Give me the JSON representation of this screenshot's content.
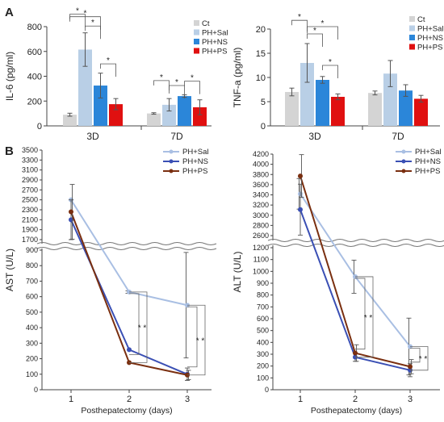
{
  "panels": {
    "a": "A",
    "b": "B"
  },
  "colors": {
    "ct": "#d4d4d4",
    "sal": "#b9cfe6",
    "ns": "#2b86d9",
    "ps": "#e01010",
    "axis": "#444444",
    "line_sal": "#a9bfe3",
    "line_ns": "#3a4fb4",
    "line_ps": "#7a2f10"
  },
  "chart_data": [
    {
      "type": "bar",
      "ylabel": "IL-6 (pg/ml)",
      "categories": [
        "3D",
        "7D"
      ],
      "ylim": [
        0,
        800
      ],
      "yticks": [
        "0",
        "200",
        "400",
        "600",
        "800"
      ],
      "series": [
        {
          "name": "Ct",
          "values": [
            90,
            100
          ],
          "errors": [
            12,
            6
          ]
        },
        {
          "name": "PH+Sal",
          "values": [
            615,
            170
          ],
          "errors": [
            135,
            50
          ]
        },
        {
          "name": "PH+NS",
          "values": [
            325,
            240
          ],
          "errors": [
            100,
            10
          ]
        },
        {
          "name": "PH+PS",
          "values": [
            175,
            150
          ],
          "errors": [
            45,
            60
          ]
        }
      ],
      "brackets": [
        {
          "group": 0,
          "from": 0,
          "to": 1,
          "level": 900,
          "label": "*"
        },
        {
          "group": 0,
          "from": 0,
          "to": 2,
          "level": 880,
          "label": "*"
        },
        {
          "group": 0,
          "from": 1,
          "to": 2,
          "level": 805,
          "label": "*"
        },
        {
          "group": 0,
          "from": 2,
          "to": 3,
          "level": 500,
          "label": "*"
        },
        {
          "group": 1,
          "from": 0,
          "to": 1,
          "level": 365,
          "label": "*"
        },
        {
          "group": 1,
          "from": 1,
          "to": 2,
          "level": 325,
          "label": "*"
        },
        {
          "group": 1,
          "from": 2,
          "to": 3,
          "level": 360,
          "label": "*"
        }
      ]
    },
    {
      "type": "bar",
      "ylabel": "TNF-a (pg/ml)",
      "categories": [
        "3D",
        "7D"
      ],
      "ylim": [
        0,
        20
      ],
      "yticks": [
        "0",
        "5",
        "10",
        "15",
        "20"
      ],
      "series": [
        {
          "name": "Ct",
          "values": [
            7.0,
            6.8
          ],
          "errors": [
            0.8,
            0.4
          ]
        },
        {
          "name": "PH+Sal",
          "values": [
            13.0,
            10.8
          ],
          "errors": [
            4.0,
            2.7
          ]
        },
        {
          "name": "PH+NS",
          "values": [
            9.5,
            7.3
          ],
          "errors": [
            0.7,
            1.2
          ]
        },
        {
          "name": "PH+PS",
          "values": [
            6.0,
            5.6
          ],
          "errors": [
            0.6,
            0.7
          ]
        }
      ],
      "brackets": [
        {
          "group": 0,
          "from": 0,
          "to": 1,
          "level": 21.8,
          "label": "*"
        },
        {
          "group": 0,
          "from": 1,
          "to": 2,
          "level": 19.0,
          "label": "*"
        },
        {
          "group": 0,
          "from": 1,
          "to": 3,
          "level": 20.5,
          "label": "*"
        },
        {
          "group": 0,
          "from": 2,
          "to": 3,
          "level": 12.5,
          "label": "*"
        }
      ]
    },
    {
      "type": "line",
      "ylabel": "AST (U/L)",
      "xlabel": "Posthepatectomy (days)",
      "x": [
        1,
        2,
        3
      ],
      "xticks": [
        "1",
        "2",
        "3"
      ],
      "break_low": [
        0,
        900
      ],
      "break_high": [
        1700,
        3500
      ],
      "yticks_low": [
        "0",
        "100",
        "200",
        "300",
        "400",
        "500",
        "600",
        "700",
        "800",
        "900"
      ],
      "yticks_high": [
        "1700",
        "1900",
        "2100",
        "2300",
        "2500",
        "2700",
        "2900",
        "3100",
        "3300",
        "3500"
      ],
      "series": [
        {
          "name": "PH+Sal",
          "values": [
            2500,
            630,
            545
          ],
          "errors": [
            0,
            8,
            340
          ]
        },
        {
          "name": "PH+NS",
          "values": [
            2100,
            258,
            100
          ],
          "errors": [
            400,
            0,
            40
          ]
        },
        {
          "name": "PH+PS",
          "values": [
            2260,
            175,
            95
          ],
          "errors": [
            550,
            0,
            30
          ]
        }
      ],
      "annotations": [
        "* *",
        "* *"
      ]
    },
    {
      "type": "line",
      "ylabel": "ALT (U/L)",
      "xlabel": "Posthepatectomy (days)",
      "x": [
        1,
        2,
        3
      ],
      "xticks": [
        "1",
        "2",
        "3"
      ],
      "break_low": [
        0,
        1200
      ],
      "break_high": [
        2600,
        4200
      ],
      "yticks_low": [
        "0",
        "100",
        "200",
        "300",
        "400",
        "500",
        "600",
        "700",
        "800",
        "900",
        "1000",
        "1100",
        "1200"
      ],
      "yticks_high": [
        "2600",
        "2800",
        "3000",
        "3200",
        "3400",
        "3600",
        "3800",
        "4000",
        "4200"
      ],
      "series": [
        {
          "name": "PH+Sal",
          "values": [
            3420,
            955,
            365
          ],
          "errors": [
            300,
            140,
            240
          ]
        },
        {
          "name": "PH+NS",
          "values": [
            3110,
            275,
            165
          ],
          "errors": [
            500,
            35,
            55
          ]
        },
        {
          "name": "PH+PS",
          "values": [
            3770,
            310,
            195
          ],
          "errors": [
            420,
            70,
            60
          ]
        }
      ],
      "annotations": [
        "* *",
        "* *"
      ]
    }
  ]
}
